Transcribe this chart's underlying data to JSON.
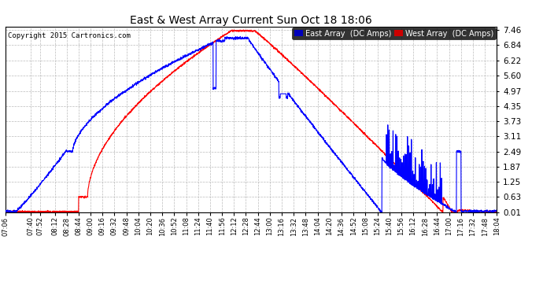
{
  "title": "East & West Array Current Sun Oct 18 18:06",
  "copyright": "Copyright 2015 Cartronics.com",
  "legend_east": "East Array  (DC Amps)",
  "legend_west": "West Array  (DC Amps)",
  "east_color": "#0000ff",
  "west_color": "#ff0000",
  "legend_east_bg": "#0000bb",
  "legend_west_bg": "#cc0000",
  "bg_color": "#ffffff",
  "plot_bg": "#ffffff",
  "grid_color": "#bbbbbb",
  "yticks": [
    0.01,
    0.63,
    1.25,
    1.87,
    2.49,
    3.11,
    3.73,
    4.35,
    4.97,
    5.6,
    6.22,
    6.84,
    7.46
  ],
  "ylim": [
    0.0,
    7.6
  ],
  "xtick_labels": [
    "07:06",
    "07:40",
    "07:52",
    "08:12",
    "08:28",
    "08:44",
    "09:00",
    "09:16",
    "09:32",
    "09:48",
    "10:04",
    "10:20",
    "10:36",
    "10:52",
    "11:08",
    "11:24",
    "11:40",
    "11:56",
    "12:12",
    "12:28",
    "12:44",
    "13:00",
    "13:16",
    "13:32",
    "13:48",
    "14:04",
    "14:20",
    "14:36",
    "14:52",
    "15:08",
    "15:24",
    "15:40",
    "15:56",
    "16:12",
    "16:28",
    "16:44",
    "17:00",
    "17:16",
    "17:32",
    "17:48",
    "18:04"
  ]
}
